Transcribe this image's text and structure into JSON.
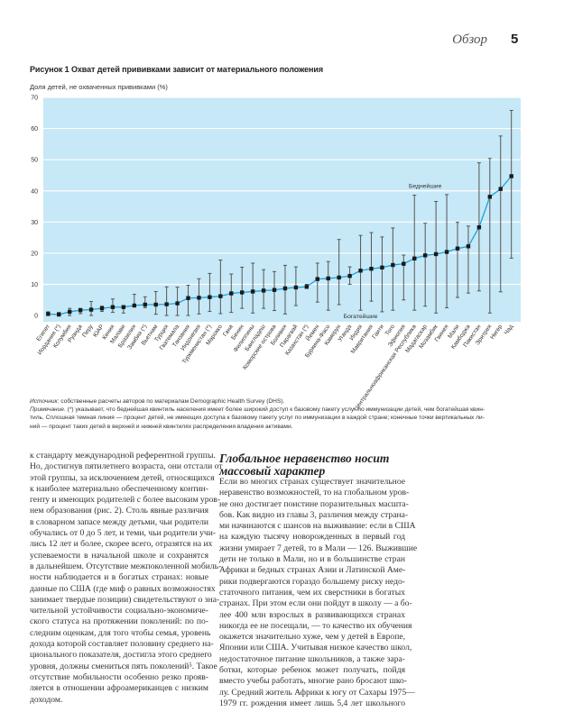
{
  "header": {
    "section": "Обзор",
    "page_number": "5"
  },
  "figure": {
    "title": "Рисунок 1 Охват детей прививками зависит от материального положения",
    "ylabel": "Доля детей, не охваченных прививками (%)"
  },
  "chart_data": {
    "type": "line",
    "title": "Рисунок 1 Охват детей прививками зависит от материального положения",
    "ylabel": "Доля детей, не охваченных прививками (%)",
    "xlabel": "",
    "ylim": [
      0,
      70
    ],
    "yticks": [
      0,
      10,
      20,
      30,
      40,
      50,
      60,
      70
    ],
    "grid": true,
    "colors": {
      "background": "#c6e8f7",
      "line": "#1aa3dd",
      "marker": "#1a1a1a",
      "errorbar": "#555555",
      "grid": "#ffffff"
    },
    "categories": [
      "Египет",
      "Иордания (*)",
      "Колумбия",
      "Руанда",
      "Перу",
      "ЮАР",
      "Кения",
      "Малави",
      "Бразилия",
      "Замбия (*)",
      "Вьетнам",
      "Турция",
      "Гватемала",
      "Танзания",
      "Индонезия",
      "Туркменистан (*)",
      "Марокко",
      "Гана",
      "Бенин",
      "Филиппины",
      "Бангладеш",
      "Коморские острова",
      "Боливия",
      "Парагвай",
      "Казахстан (*)",
      "Йемен",
      "Буркина-Фасо",
      "Камерун",
      "Уганда",
      "Индия",
      "Мавритания",
      "Гаити",
      "Того",
      "Эфиопия",
      "Центральноафриканская Республика",
      "Мадагаскар",
      "Мозамбик",
      "Гвинея",
      "Мали",
      "Камбоджа",
      "Пакистан",
      "Эритрея",
      "Нигер",
      "Чад"
    ],
    "series": [
      {
        "name": "Все дети",
        "values": [
          0.5,
          0.3,
          1.2,
          1.7,
          1.9,
          2.3,
          2.7,
          2.7,
          3.2,
          3.5,
          3.5,
          3.6,
          3.9,
          5.6,
          5.7,
          5.9,
          6.2,
          7.1,
          7.4,
          7.7,
          8.0,
          8.2,
          8.7,
          9.0,
          9.2,
          11.7,
          11.9,
          12.2,
          12.7,
          14.4,
          15.0,
          15.4,
          16.2,
          16.6,
          18.3,
          19.3,
          19.7,
          20.4,
          21.5,
          22.2,
          28.3,
          38.1,
          40.6,
          44.7
        ]
      },
      {
        "name": "Богатейшие",
        "values": [
          0,
          0,
          0,
          0.6,
          0,
          1.3,
          1,
          0.8,
          3,
          2.5,
          0.4,
          0,
          0,
          0,
          0.5,
          1.3,
          0.6,
          1,
          2.3,
          0.8,
          2.3,
          1.6,
          0.5,
          3.2,
          9.1,
          4.3,
          1.7,
          3.5,
          10,
          1.7,
          4.6,
          1.2,
          1.7,
          5,
          1.7,
          3,
          0.8,
          2.5,
          5.8,
          7.2,
          7.9,
          0.8,
          7.6,
          18.4
        ]
      },
      {
        "name": "Беднейшие",
        "values": [
          1.2,
          1,
          2.3,
          2.3,
          4.5,
          3.0,
          5.3,
          3.2,
          6.8,
          6,
          7.7,
          9.2,
          9.1,
          9.7,
          11.8,
          13.5,
          17.8,
          13.3,
          15.5,
          16.8,
          14.7,
          14.1,
          16.1,
          15.6,
          10.0,
          16.8,
          17.3,
          24.4,
          15.6,
          25.7,
          26.6,
          25.2,
          28.1,
          19.4,
          38.6,
          29.6,
          36.6,
          38.8,
          29.9,
          28.7,
          49,
          50.4,
          57.6,
          65.8
        ]
      }
    ],
    "annotations": [
      {
        "text": "Беднейшие",
        "x_category": "Мадагаскар",
        "y": 41
      },
      {
        "text": "Богатейшие",
        "x_category": "Индия",
        "y": 0
      }
    ]
  },
  "notes": {
    "source_label": "Источник",
    "source_text": ": собственные расчеты авторов по материалам Demographic Health Survey (DHS).",
    "note_label": "Примечание",
    "note_lines": [
      ". (*) указывает, что беднейшая квинтиль населения имеет более широкий доступ к базовому пакету услуг по иммунизации детей, чем богатейшая квин-",
      "тиль. Сплошная темная линия — процент детей, не имеющих доступа к базовому пакету услуг по иммунизации в каждой стране; конечные точки вертикальных ли-",
      "ний — процент таких детей в верхней и нижней квинтилях распределения владения активами."
    ]
  },
  "body": {
    "left_lines": [
      "к стандарту международной референтной группы.",
      "Но, достигнув пятилетнего возраста, они отстали от",
      "этой группы, за исключением детей, относящихся",
      "к наиболее материально обеспеченному контин-",
      "генту и имеющих родителей с более высоким уров-",
      "нем образования (рис. 2). Столь явные различия",
      "в словарном запасе между детьми, чьи родители",
      "обучались от 0 до 5 лет, и теми, чьи родители учи-",
      "лись 12 лет и более, скорее всего, отразятся на их",
      "успеваемости в начальной школе и сохранятся",
      "в дальнейшем. Отсутствие межпоколенной мобиль-",
      "ности наблюдается и в богатых странах: новые",
      "данные по США (где миф о равных возможностях",
      "занимает твердые позиции) свидетельствуют о зна-",
      "чительной устойчивости социально-экономиче-",
      "ского статуса на протяжении поколений: по по-",
      "следним оценкам, для того чтобы семья, уровень",
      "дохода которой составляет половину среднего на-",
      "ционального показателя, достигла этого среднего",
      "уровня, должны смениться пять поколений⁵. Такое",
      "отсутствие мобильности особенно резко прояв-",
      "ляется в отношении афроамериканцев с низким",
      "доходом."
    ],
    "heading": "Глобальное неравенство носит массовый характер",
    "right_lines": [
      "Если во многих странах существует значительное",
      "неравенство возможностей, то на глобальном уров-",
      "не оно достигает поистине поразительных масшта-",
      "бов. Как видно из главы 3, различия между страна-",
      "ми начинаются с шансов на выживание: если в США",
      "на каждую тысячу новорожденных в первый год",
      "жизни умирает 7 детей, то в Мали — 126. Выжившие",
      "дети не только в Мали, но и в большинстве стран",
      "Африки и бедных странах Азии и Латинской Аме-",
      "рики подвергаются гораздо большему риску недо-",
      "статочного питания, чем их сверстники в богатых",
      "странах. При этом если они пойдут в школу — а бо-",
      "лее 400 млн взрослых в развивающихся странах",
      "никогда ее не посещали, — то качество их обучения",
      "окажется значительно хуже, чем у детей в Европе,",
      "Японии или США. Учитывая низкое качество школ,",
      "недостаточное питание школьников, а также зара-",
      "ботки, которые ребенок может получать, пойдя",
      "вместо учебы работать, многие рано бросают шко-",
      "лу. Средний житель Африки к югу от Сахары 1975—",
      "1979 гг. рождения имеет лишь 5,4 лет школьного"
    ]
  }
}
